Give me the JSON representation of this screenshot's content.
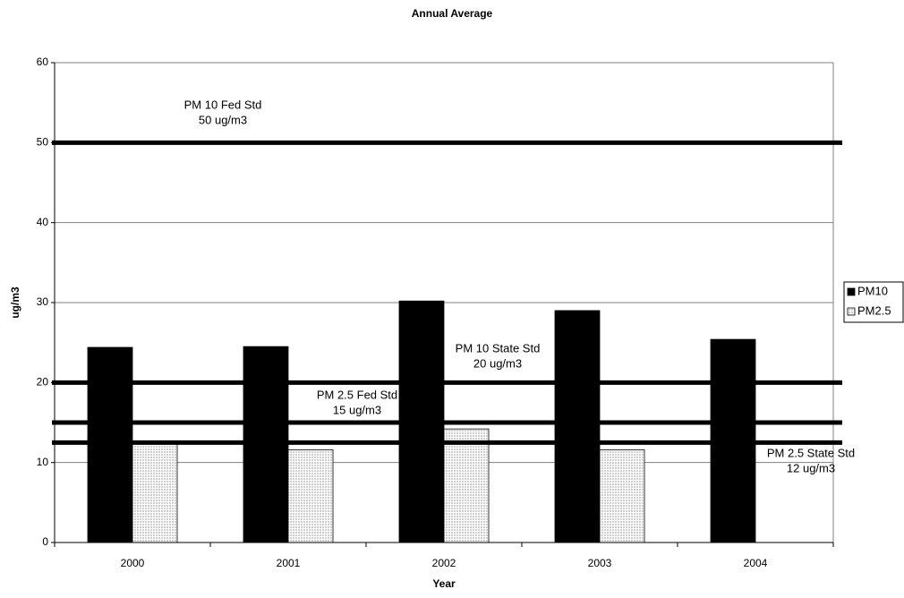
{
  "chart_data": {
    "type": "bar",
    "title": "Annual Average",
    "x_label": "Year",
    "y_label": "ug/m3",
    "categories": [
      "2000",
      "2001",
      "2002",
      "2003",
      "2004"
    ],
    "series": [
      {
        "name": "PM10",
        "color": "#000000",
        "values": [
          24.4,
          24.5,
          30.2,
          29.0,
          25.4
        ]
      },
      {
        "name": "PM2.5",
        "color": "#e4e4e4",
        "values": [
          12.3,
          11.6,
          14.2,
          11.6,
          null
        ]
      }
    ],
    "ylim": [
      0,
      60
    ],
    "yticks": [
      0,
      10,
      20,
      30,
      40,
      50,
      60
    ],
    "grid": true,
    "legend": "right",
    "reference_lines": [
      {
        "value": 50,
        "label": [
          "PM 10 Fed Std",
          "50 ug/m3"
        ]
      },
      {
        "value": 20,
        "label": [
          "PM 10 State Std",
          "20 ug/m3"
        ]
      },
      {
        "value": 15,
        "label": [
          "PM 2.5 Fed Std",
          "15 ug/m3"
        ]
      },
      {
        "value": 12.5,
        "label": [
          "PM 2.5 State Std",
          "12 ug/m3"
        ]
      }
    ]
  }
}
